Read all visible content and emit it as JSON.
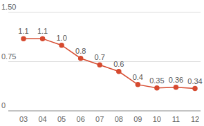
{
  "chart_data": {
    "type": "line",
    "categories": [
      "03",
      "04",
      "05",
      "06",
      "07",
      "08",
      "09",
      "10",
      "11",
      "12"
    ],
    "values": [
      1.1,
      1.1,
      1.0,
      0.8,
      0.7,
      0.6,
      0.4,
      0.35,
      0.36,
      0.34
    ],
    "value_labels": [
      "1.1",
      "1.1",
      "1.0",
      "0.8",
      "0.7",
      "0.6",
      "0.4",
      "0.35",
      "0.36",
      "0.34"
    ],
    "color": "#d64a2f",
    "marker": "circle",
    "ylim": [
      0,
      1.5
    ],
    "yticks": [
      0,
      0.75,
      {
        "value": 1.5,
        "label": "1.50"
      }
    ],
    "grid": true,
    "data_labels": true
  }
}
